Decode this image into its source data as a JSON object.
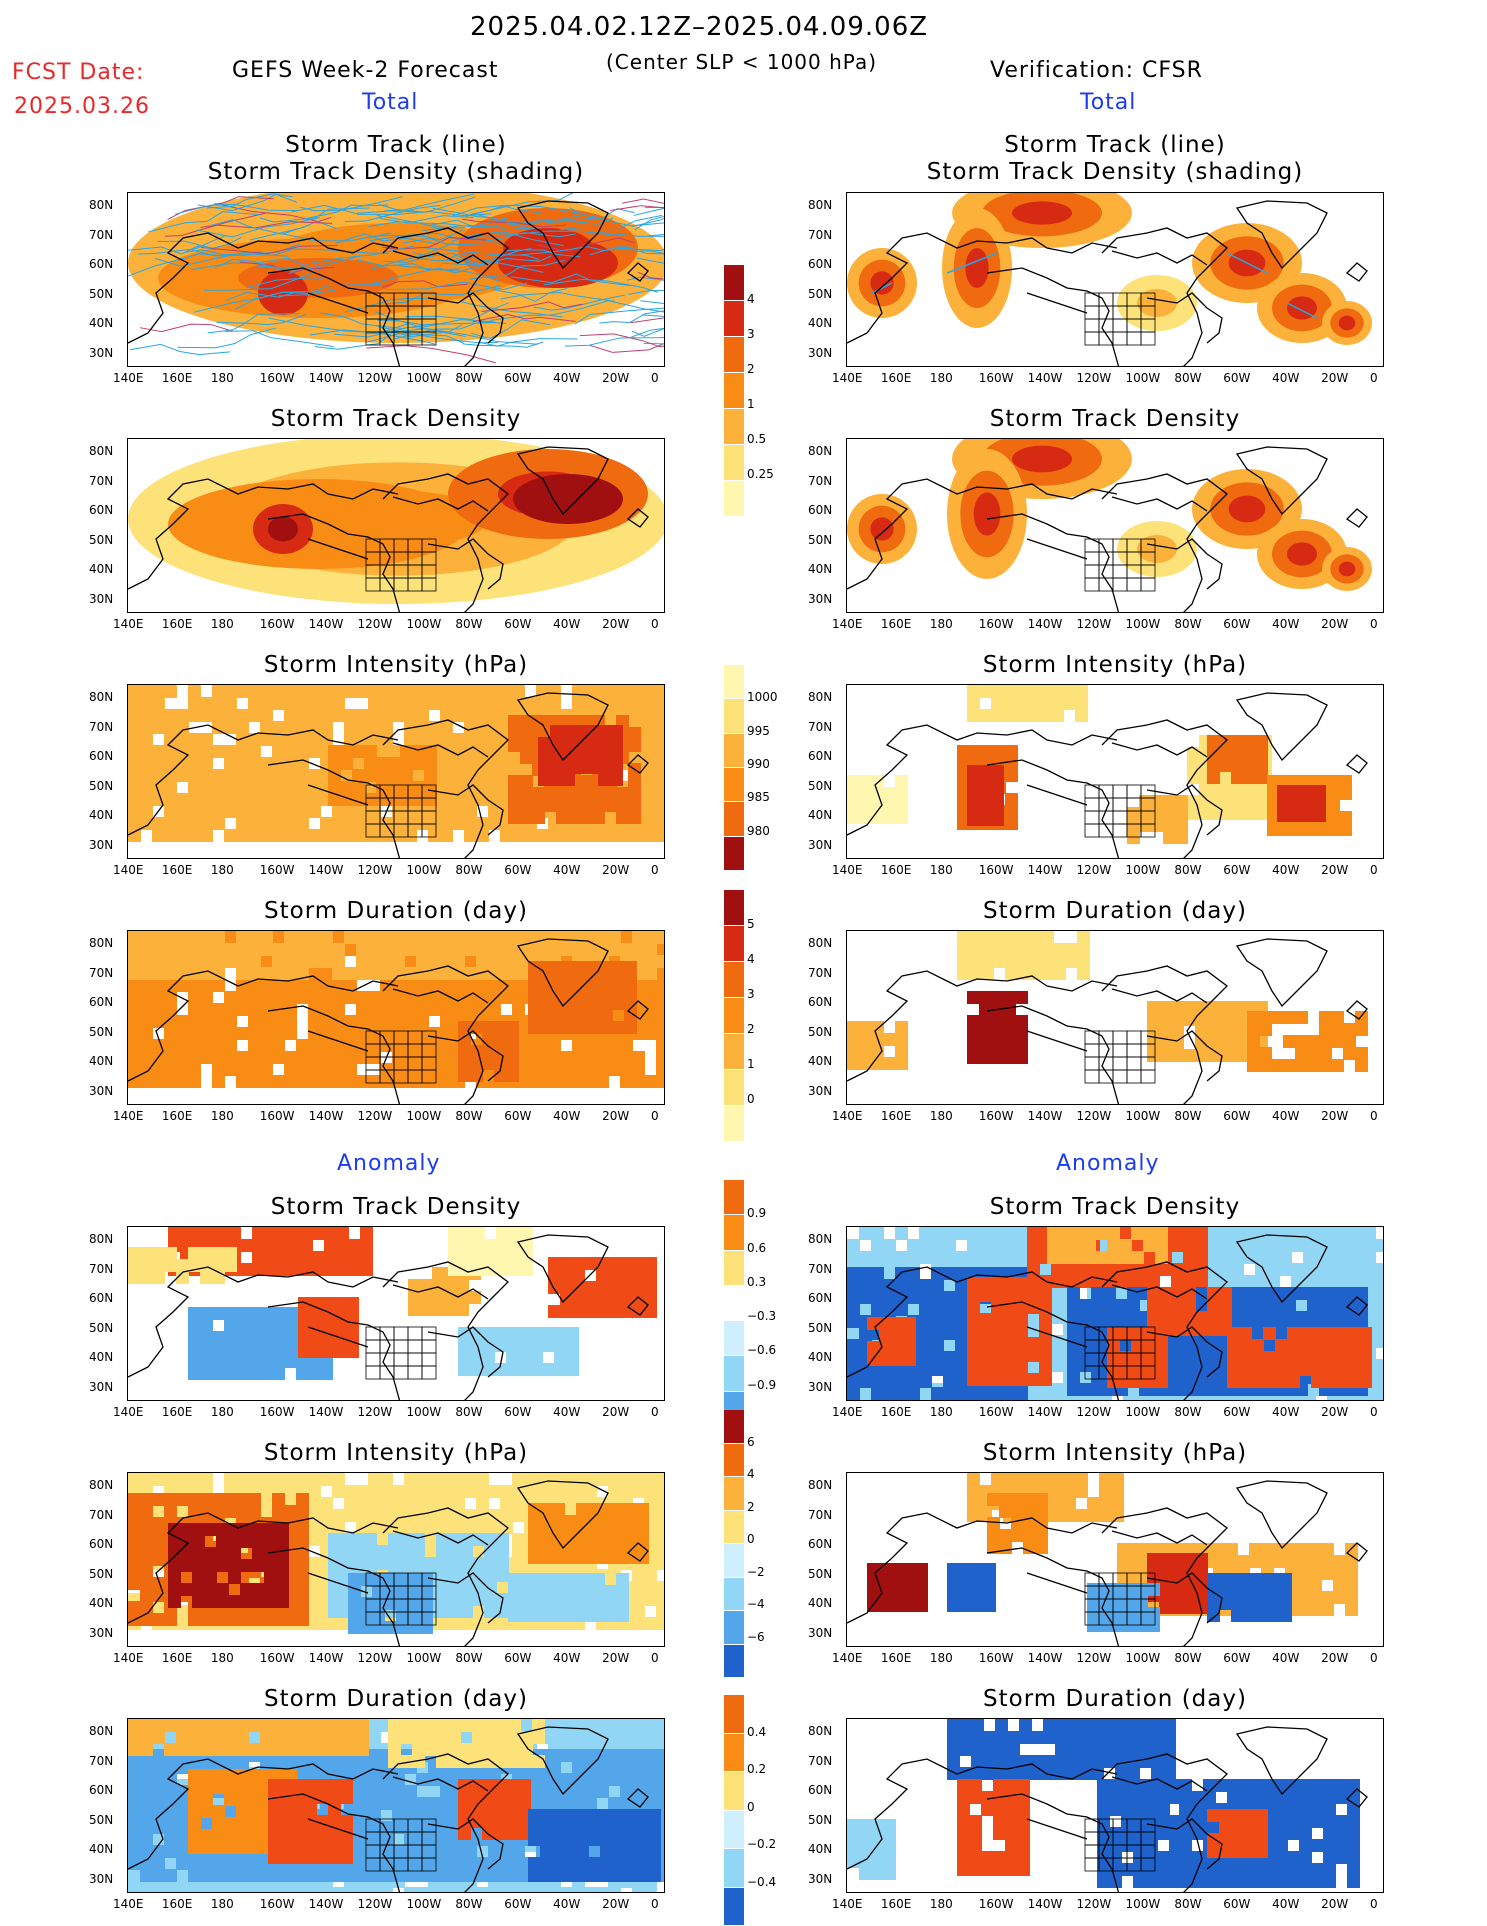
{
  "header": {
    "date_range": "2025.04.02.12Z–2025.04.09.06Z",
    "fcst_label": "FCST Date:",
    "fcst_date": "2025.03.26",
    "left_title": "GEFS Week-2 Forecast",
    "criterion": "(Center SLP < 1000 hPa)",
    "right_title": "Verification: CFSR"
  },
  "sections": {
    "total": "Total",
    "anomaly": "Anomaly"
  },
  "panel_titles": {
    "track": "Storm Track (line)\nStorm Track Density (shading)",
    "density": "Storm Track Density",
    "intensity": "Storm Intensity (hPa)",
    "duration": "Storm Duration (day)"
  },
  "axes": {
    "lon_ticks": [
      "140E",
      "160E",
      "180",
      "160W",
      "140W",
      "120W",
      "100W",
      "80W",
      "60W",
      "40W",
      "20W",
      "0"
    ],
    "lat_ticks": [
      "80N",
      "70N",
      "60N",
      "50N",
      "40N",
      "30N"
    ]
  },
  "colorbars": {
    "density_total": [
      "4",
      "3",
      "2",
      "1",
      "0.5",
      "0.25"
    ],
    "intensity_total": [
      "1000",
      "995",
      "990",
      "985",
      "980"
    ],
    "duration_total": [
      "5",
      "4",
      "3",
      "2",
      "1",
      "0"
    ],
    "density_anom": [
      "0.9",
      "0.6",
      "0.3",
      "−0.3",
      "−0.6",
      "−0.9"
    ],
    "intensity_anom": [
      "6",
      "4",
      "2",
      "0",
      "−2",
      "−4",
      "−6"
    ],
    "duration_anom": [
      "0.4",
      "0.2",
      "0",
      "−0.2",
      "−0.4"
    ]
  },
  "colors": {
    "warm": [
      "#fff6b0",
      "#fde27a",
      "#fbb13a",
      "#f98c15",
      "#f06a10",
      "#d62b12",
      "#a01010"
    ],
    "cool": [
      "#cfefff",
      "#92d6f5",
      "#53a6ea",
      "#1f62cc"
    ],
    "track_line": "#29a6e6"
  }
}
